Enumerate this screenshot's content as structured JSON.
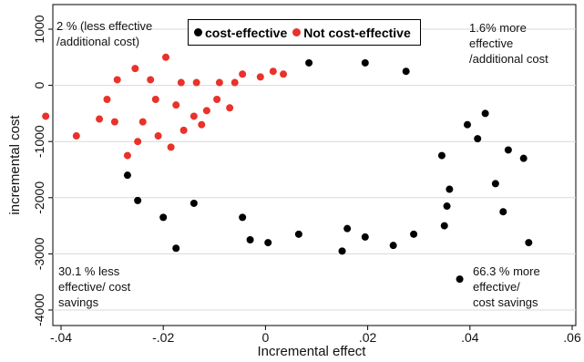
{
  "chart_data": {
    "type": "scatter",
    "xlabel": "Incremental effect",
    "ylabel": "incremental cost",
    "xlim": [
      -0.045,
      0.06
    ],
    "ylim": [
      -4200,
      1100
    ],
    "x_ticks": [
      -0.04,
      -0.02,
      0,
      0.02,
      0.04,
      0.06
    ],
    "x_tick_labels": [
      "-.04",
      "-.02",
      "0",
      ".02",
      ".04",
      ".06"
    ],
    "y_ticks": [
      -4000,
      -3000,
      -2000,
      -1000,
      0,
      1000
    ],
    "y_tick_labels": [
      "-4000",
      "-3000",
      "-2000",
      "-1000",
      "0",
      "1000"
    ],
    "grid": "horizontal",
    "legend_position": "top-center",
    "series": [
      {
        "name": "cost-effective",
        "color": "#000000",
        "points": [
          [
            0.0355,
            -2150
          ],
          [
            0.038,
            -3450
          ],
          [
            0.0515,
            -2800
          ],
          [
            0.045,
            -1750
          ],
          [
            0.0465,
            -2250
          ],
          [
            0.0505,
            -1300
          ],
          [
            0.0475,
            -1150
          ],
          [
            0.043,
            -500
          ],
          [
            0.0395,
            -700
          ],
          [
            0.0415,
            -950
          ],
          [
            0.036,
            -1850
          ],
          [
            0.035,
            -2500
          ],
          [
            0.0345,
            -1250
          ],
          [
            -0.02,
            -2350
          ],
          [
            -0.0175,
            -2900
          ],
          [
            -0.025,
            -2050
          ],
          [
            -0.027,
            -1600
          ],
          [
            0.015,
            -2950
          ],
          [
            0.0065,
            -2650
          ],
          [
            -0.003,
            -2750
          ],
          [
            0.0005,
            -2800
          ],
          [
            0.025,
            -2850
          ],
          [
            0.0195,
            -2700
          ],
          [
            0.029,
            -2650
          ],
          [
            0.016,
            -2550
          ],
          [
            -0.0045,
            -2350
          ],
          [
            -0.014,
            -2100
          ],
          [
            0.0085,
            400
          ],
          [
            0.0195,
            400
          ],
          [
            0.0275,
            250
          ]
        ]
      },
      {
        "name": "Not cost-effective",
        "color": "#e8322a",
        "points": [
          [
            -0.043,
            -550
          ],
          [
            -0.037,
            -900
          ],
          [
            -0.0195,
            500
          ],
          [
            -0.0255,
            300
          ],
          [
            -0.031,
            -250
          ],
          [
            -0.027,
            -1250
          ],
          [
            -0.0295,
            -650
          ],
          [
            -0.0225,
            100
          ],
          [
            -0.0165,
            50
          ],
          [
            -0.0135,
            50
          ],
          [
            -0.009,
            50
          ],
          [
            -0.006,
            50
          ],
          [
            -0.0045,
            200
          ],
          [
            -0.001,
            150
          ],
          [
            0.0015,
            250
          ],
          [
            0.0035,
            200
          ],
          [
            -0.0215,
            -250
          ],
          [
            -0.0175,
            -350
          ],
          [
            -0.014,
            -550
          ],
          [
            -0.0115,
            -450
          ],
          [
            -0.0095,
            -250
          ],
          [
            -0.007,
            -400
          ],
          [
            -0.024,
            -650
          ],
          [
            -0.021,
            -900
          ],
          [
            -0.0185,
            -1100
          ],
          [
            -0.025,
            -1000
          ],
          [
            -0.016,
            -800
          ],
          [
            -0.0125,
            -700
          ],
          [
            -0.0325,
            -600
          ],
          [
            -0.029,
            100
          ]
        ]
      }
    ],
    "annotations": [
      "2 % (less effective\n/additional cost)",
      "1.6% more\neffective\n/additional cost",
      "30.1 % less\neffective/ cost\nsavings",
      "66.3 % more\neffective/\ncost savings"
    ]
  }
}
